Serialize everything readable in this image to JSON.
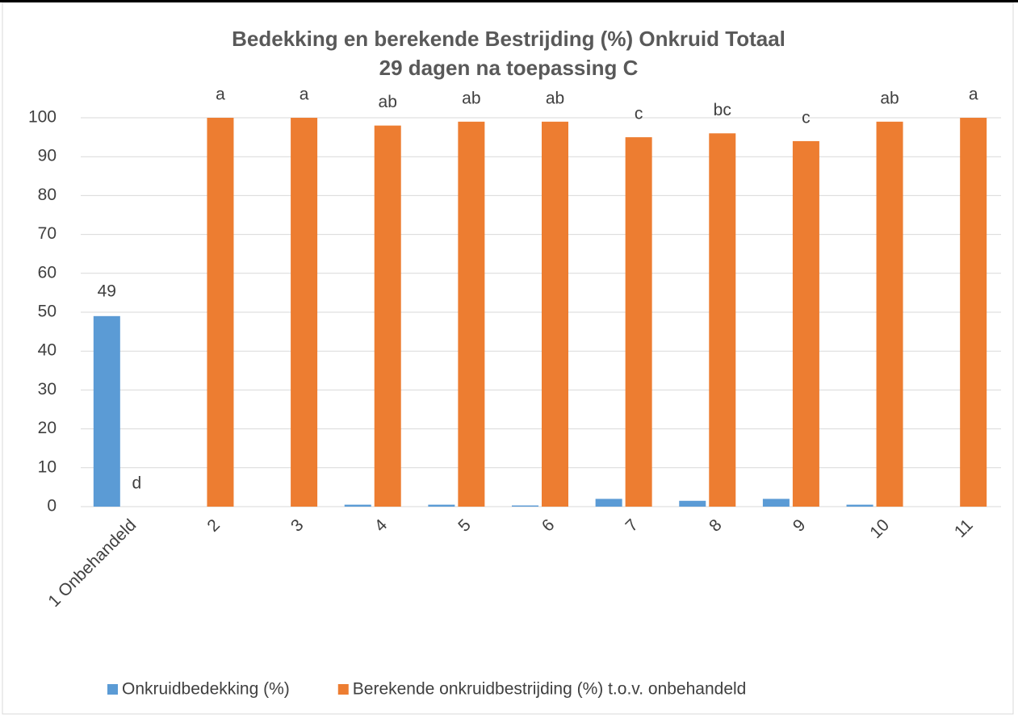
{
  "chart_data": {
    "type": "bar",
    "title": [
      "Bedekking en berekende Bestrijding (%) Onkruid Totaal",
      "29 dagen na toepassing C"
    ],
    "categories": [
      "1 Onbehandeld",
      "2",
      "3",
      "4",
      "5",
      "6",
      "7",
      "8",
      "9",
      "10",
      "11"
    ],
    "series": [
      {
        "name": "Onkruidbedekking (%)",
        "color": "#5b9bd5",
        "values": [
          49,
          0,
          0,
          0.5,
          0.5,
          0.3,
          2,
          1.5,
          2,
          0.5,
          0
        ],
        "value_labels": [
          "49",
          null,
          null,
          null,
          null,
          null,
          null,
          null,
          null,
          null,
          null
        ]
      },
      {
        "name": "Berekende onkruidbestrijding (%) t.o.v. onbehandeld",
        "color": "#ed7d31",
        "values": [
          0,
          100,
          100,
          98,
          99,
          99,
          95,
          96,
          94,
          99,
          100
        ],
        "annotations": [
          "d",
          "a",
          "a",
          "ab",
          "ab",
          "ab",
          "c",
          "bc",
          "c",
          "ab",
          "a"
        ]
      }
    ],
    "ylim": [
      0,
      100
    ],
    "yticks": [
      0,
      10,
      20,
      30,
      40,
      50,
      60,
      70,
      80,
      90,
      100
    ],
    "grid": true,
    "legend": "bottom"
  }
}
